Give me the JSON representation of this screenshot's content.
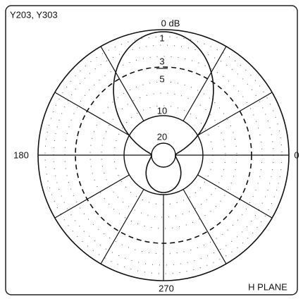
{
  "title": "Y203, Y303",
  "plane": "H PLANE",
  "ring_labels": [
    "0 dB",
    "1",
    "3",
    "5",
    "10",
    "20"
  ],
  "angle_labels": {
    "left": "180",
    "right": "0",
    "bottom": "270"
  }
}
